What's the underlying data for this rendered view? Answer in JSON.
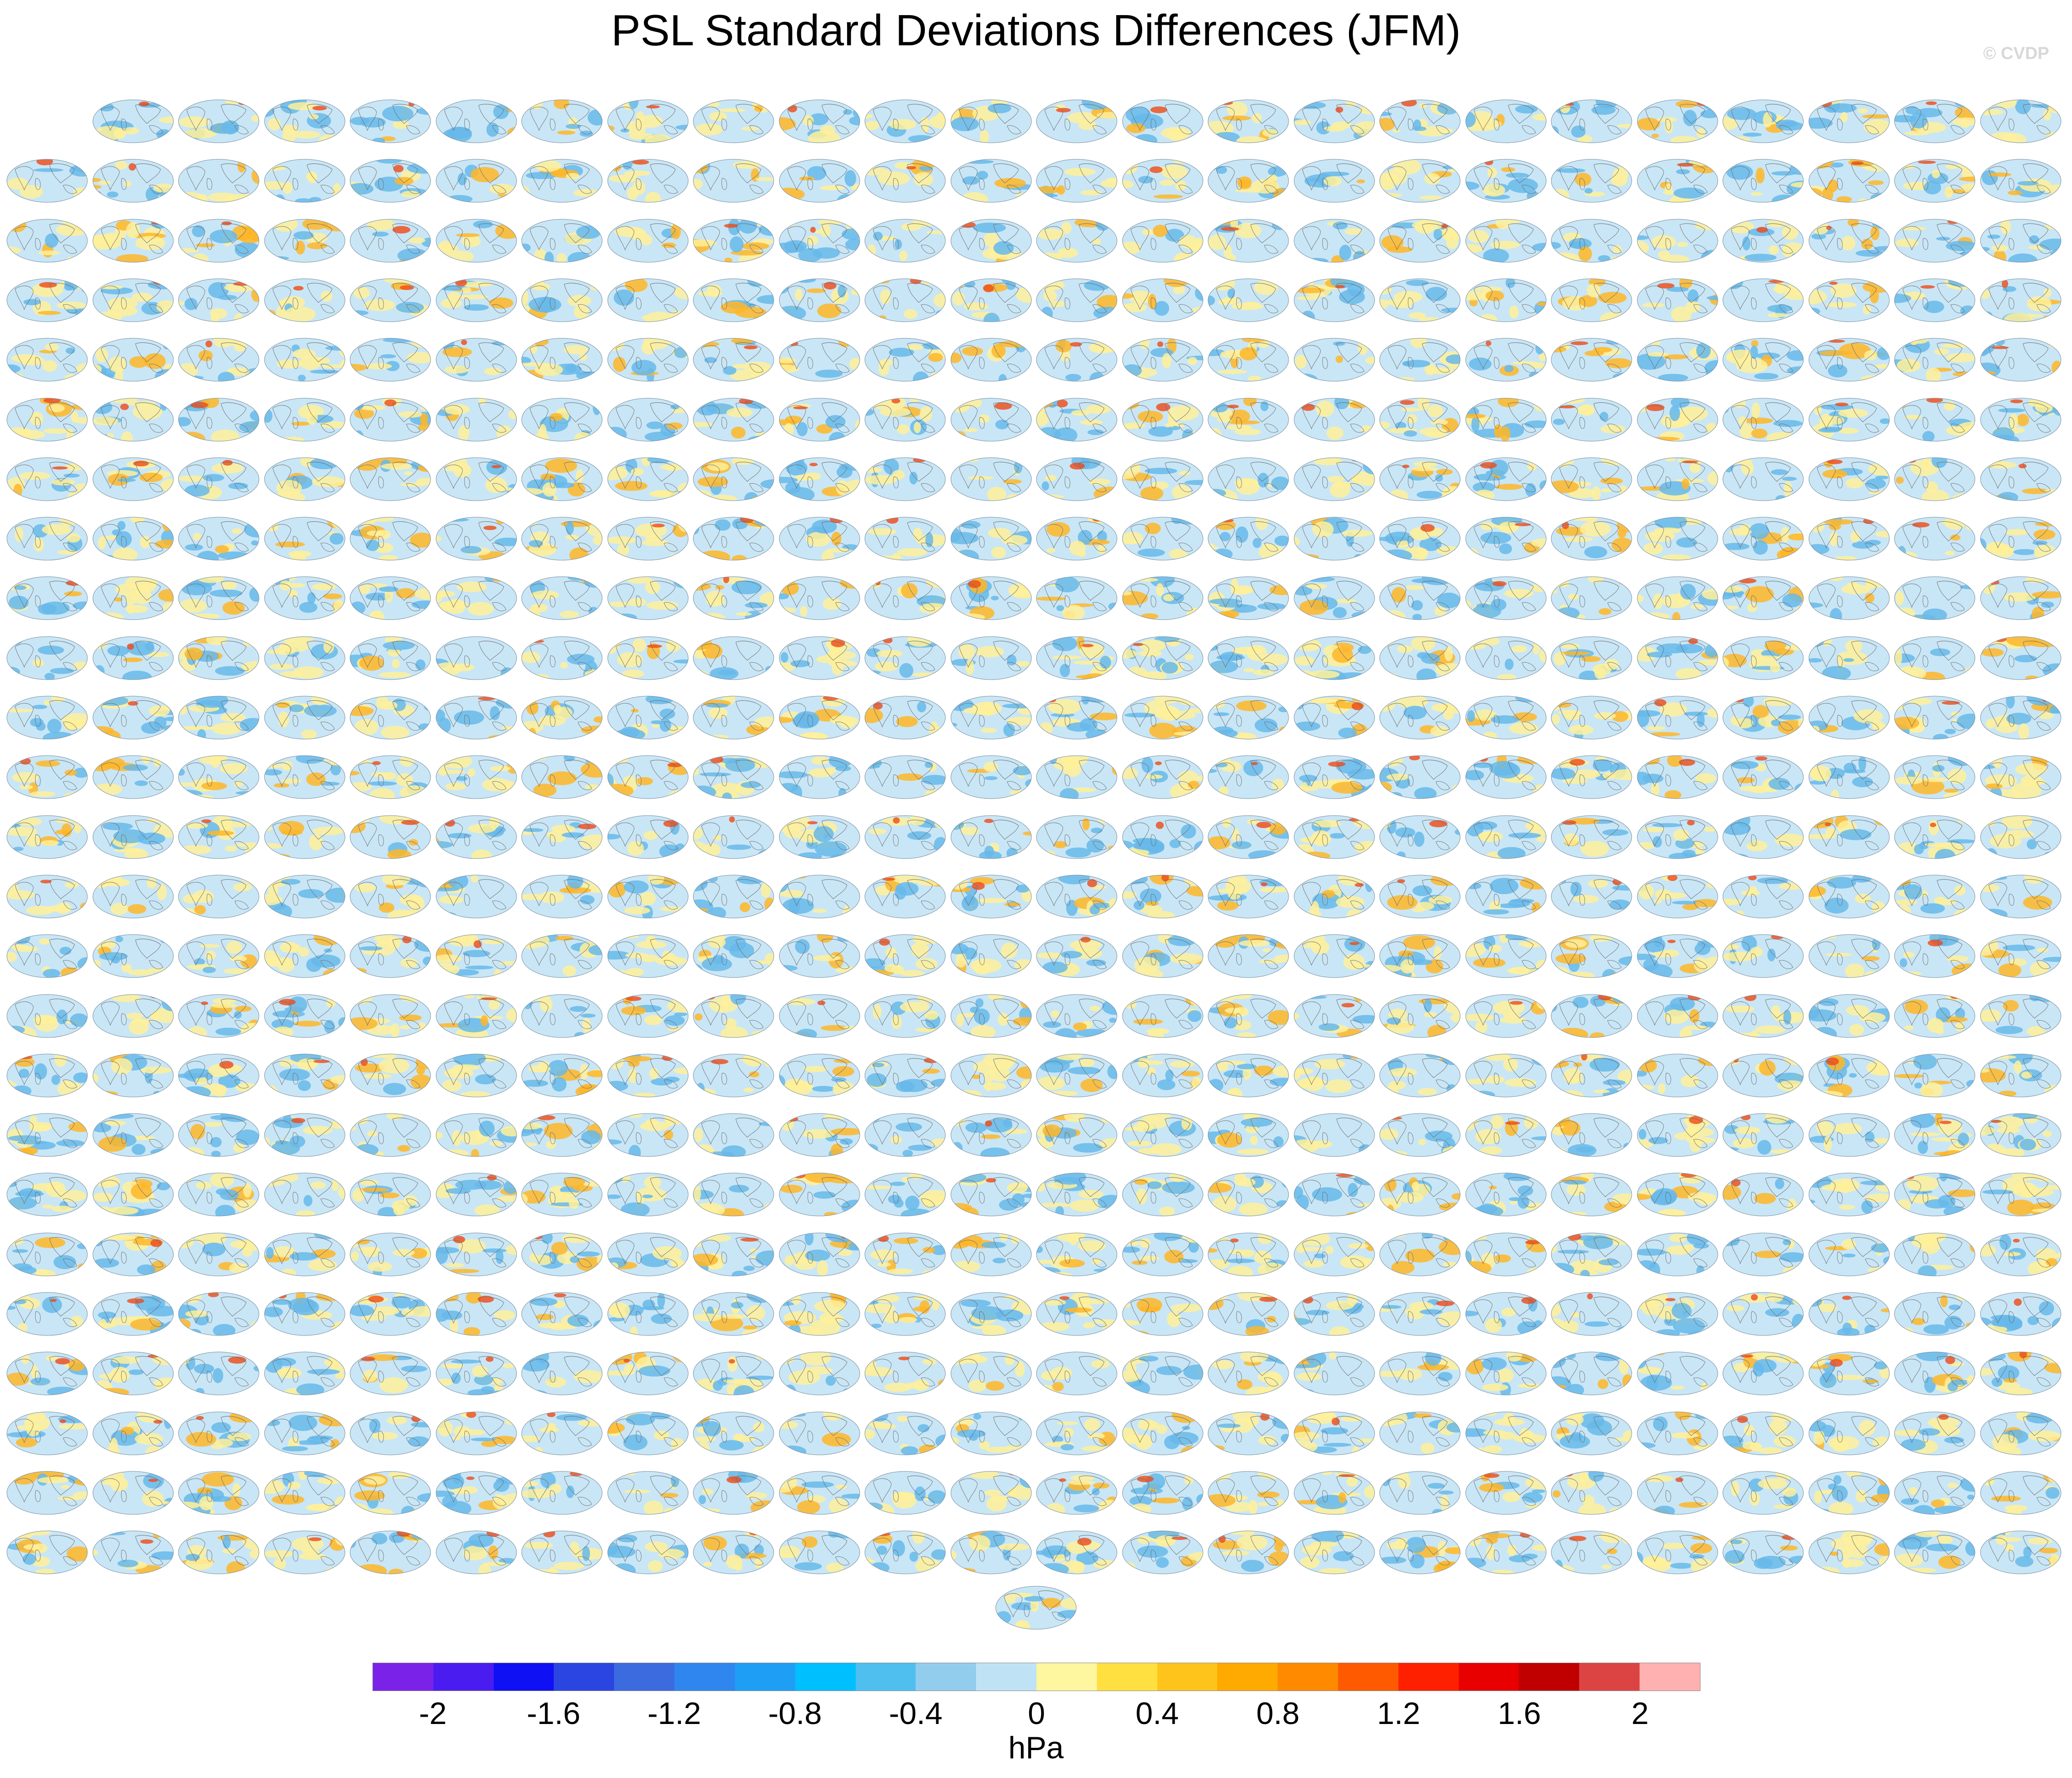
{
  "figure": {
    "title": "PSL Standard Deviations Differences (JFM)",
    "watermark": "© CVDP"
  },
  "chart_data": {
    "type": "heatmap",
    "description_type": "panel-grid of global map difference fields",
    "title": "PSL Standard Deviations Differences (JFM)",
    "rows": [
      23,
      24,
      24,
      24,
      24,
      24,
      24,
      24,
      24,
      24,
      24,
      24,
      24,
      24,
      24,
      24,
      24,
      24,
      24,
      24,
      24,
      24,
      24,
      24,
      24,
      1
    ],
    "colorbar": {
      "units": "hPa",
      "levels": [
        -2.2,
        -2,
        -1.8,
        -1.6,
        -1.4,
        -1.2,
        -1,
        -0.8,
        -0.6,
        -0.4,
        -0.2,
        0,
        0.2,
        0.4,
        0.6,
        0.8,
        1,
        1.2,
        1.4,
        1.6,
        1.8,
        2,
        2.2
      ],
      "tick_labels": [
        "-2",
        "-1.6",
        "-1.2",
        "-0.8",
        "-0.4",
        "0",
        "0.4",
        "0.8",
        "1.2",
        "1.6",
        "2"
      ],
      "colors": [
        "#7b22e8",
        "#4a1cf0",
        "#1010f5",
        "#2a45e0",
        "#3c6be0",
        "#2f86ee",
        "#1e9ff5",
        "#00bfff",
        "#4fbff0",
        "#92cdee",
        "#bfe3f5",
        "#fff6a0",
        "#ffe040",
        "#ffc41c",
        "#ffaa00",
        "#ff8a00",
        "#ff5a00",
        "#ff2000",
        "#e80000",
        "#c00000",
        "#dc4444",
        "#ffb0b0"
      ]
    }
  },
  "palette": {
    "ocean": "#c9e6f6",
    "neg": "#67b8ea",
    "pos": "#fff09a",
    "pos_strong": "#ffb627",
    "hot": "#ef4a16",
    "coast": "#6e6e6e",
    "edge": "#7a8fa0"
  }
}
